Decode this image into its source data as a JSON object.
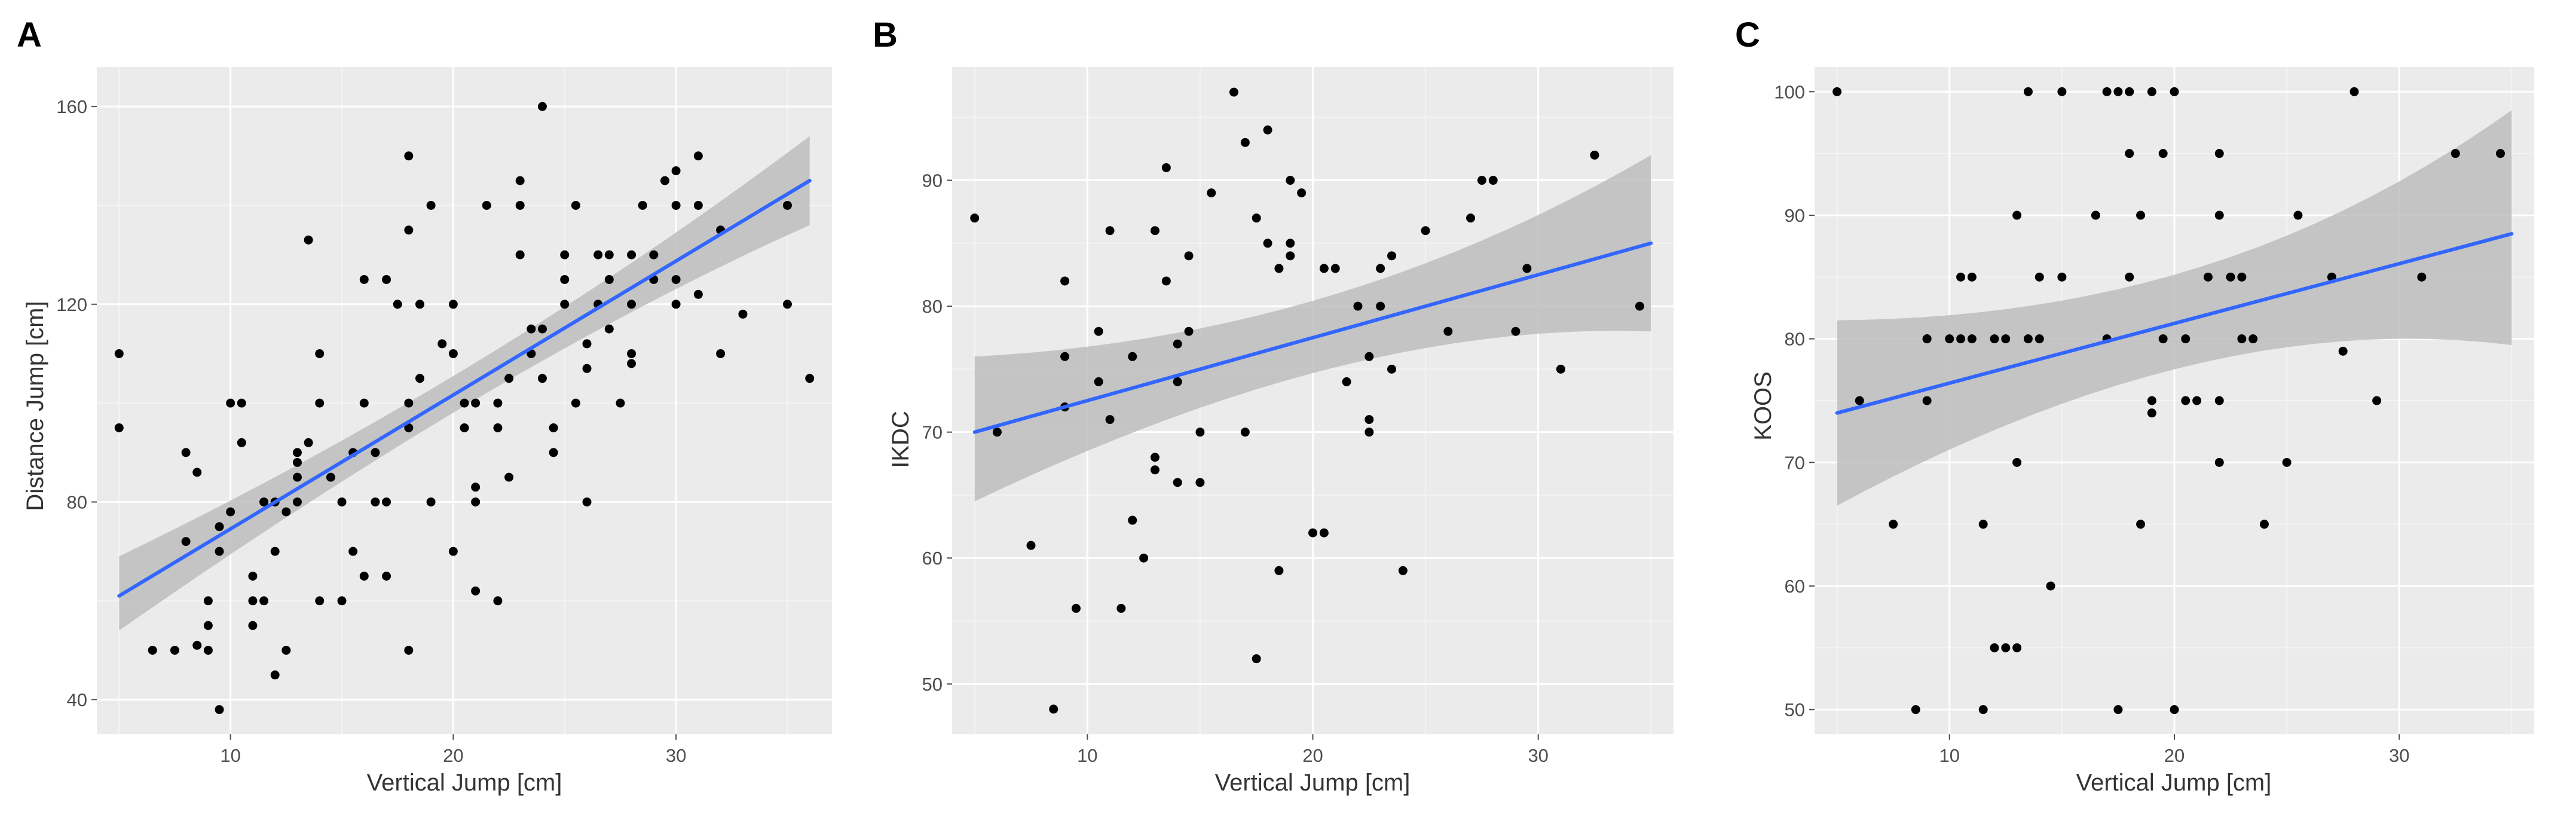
{
  "colors": {
    "panel_bg": "#ebebeb",
    "grid_major": "#ffffff",
    "grid_minor": "#f4f4f4",
    "point": "#000000",
    "fit_line": "#3366ff",
    "ci_band": "#bdbdbd"
  },
  "chart_data": [
    {
      "panel": "A",
      "type": "scatter",
      "title": "",
      "xlabel": "Vertical Jump [cm]",
      "ylabel": "Distance Jump [cm]",
      "xlim": [
        4,
        37
      ],
      "ylim": [
        33,
        168
      ],
      "xticks": [
        10,
        20,
        30
      ],
      "yticks": [
        40,
        80,
        120,
        160
      ],
      "fit": {
        "x": [
          5,
          36
        ],
        "y": [
          61,
          145
        ],
        "lower": [
          54,
          136
        ],
        "upper": [
          69,
          154
        ]
      },
      "points": [
        [
          5,
          110
        ],
        [
          5,
          95
        ],
        [
          6.5,
          50
        ],
        [
          7.5,
          50
        ],
        [
          8,
          72
        ],
        [
          8,
          90
        ],
        [
          8.5,
          51
        ],
        [
          8.5,
          86
        ],
        [
          9,
          50
        ],
        [
          9,
          60
        ],
        [
          9,
          55
        ],
        [
          9.5,
          75
        ],
        [
          9.5,
          70
        ],
        [
          10,
          78
        ],
        [
          10,
          100
        ],
        [
          9.5,
          38
        ],
        [
          10.5,
          100
        ],
        [
          10.5,
          92
        ],
        [
          11,
          55
        ],
        [
          11,
          60
        ],
        [
          11,
          65
        ],
        [
          11.5,
          60
        ],
        [
          11.5,
          80
        ],
        [
          12,
          80
        ],
        [
          12,
          70
        ],
        [
          12,
          45
        ],
        [
          12.5,
          50
        ],
        [
          12.5,
          78
        ],
        [
          13,
          80
        ],
        [
          13,
          85
        ],
        [
          13,
          90
        ],
        [
          13,
          88
        ],
        [
          13.5,
          92
        ],
        [
          13.5,
          133
        ],
        [
          14,
          60
        ],
        [
          14,
          100
        ],
        [
          14,
          110
        ],
        [
          14.5,
          85
        ],
        [
          15,
          80
        ],
        [
          15,
          60
        ],
        [
          15.5,
          90
        ],
        [
          15.5,
          70
        ],
        [
          16,
          100
        ],
        [
          16,
          125
        ],
        [
          16,
          65
        ],
        [
          16.5,
          80
        ],
        [
          16.5,
          90
        ],
        [
          17,
          125
        ],
        [
          17,
          80
        ],
        [
          17,
          65
        ],
        [
          17.5,
          120
        ],
        [
          18,
          95
        ],
        [
          18,
          100
        ],
        [
          18,
          150
        ],
        [
          18,
          135
        ],
        [
          18,
          50
        ],
        [
          18.5,
          105
        ],
        [
          18.5,
          120
        ],
        [
          19,
          80
        ],
        [
          19,
          140
        ],
        [
          19.5,
          112
        ],
        [
          20,
          110
        ],
        [
          20,
          120
        ],
        [
          20,
          70
        ],
        [
          20.5,
          100
        ],
        [
          20.5,
          95
        ],
        [
          21,
          83
        ],
        [
          21,
          80
        ],
        [
          21,
          100
        ],
        [
          21,
          62
        ],
        [
          21.5,
          140
        ],
        [
          22,
          60
        ],
        [
          22,
          95
        ],
        [
          22,
          100
        ],
        [
          22.5,
          85
        ],
        [
          22.5,
          105
        ],
        [
          23,
          145
        ],
        [
          23,
          130
        ],
        [
          23,
          140
        ],
        [
          23.5,
          110
        ],
        [
          23.5,
          115
        ],
        [
          24,
          115
        ],
        [
          24,
          105
        ],
        [
          24,
          160
        ],
        [
          24.5,
          95
        ],
        [
          24.5,
          90
        ],
        [
          25,
          120
        ],
        [
          25,
          125
        ],
        [
          25,
          130
        ],
        [
          25.5,
          100
        ],
        [
          25.5,
          140
        ],
        [
          26,
          80
        ],
        [
          26,
          107
        ],
        [
          26,
          112
        ],
        [
          26.5,
          130
        ],
        [
          26.5,
          120
        ],
        [
          27,
          125
        ],
        [
          27,
          115
        ],
        [
          27,
          130
        ],
        [
          27.5,
          100
        ],
        [
          28,
          110
        ],
        [
          28,
          130
        ],
        [
          28,
          120
        ],
        [
          28,
          108
        ],
        [
          28.5,
          140
        ],
        [
          29,
          125
        ],
        [
          29,
          130
        ],
        [
          29.5,
          145
        ],
        [
          30,
          147
        ],
        [
          30,
          140
        ],
        [
          30,
          120
        ],
        [
          30,
          125
        ],
        [
          31,
          150
        ],
        [
          31,
          140
        ],
        [
          31,
          122
        ],
        [
          32,
          135
        ],
        [
          32,
          110
        ],
        [
          33,
          118
        ],
        [
          35,
          140
        ],
        [
          35,
          120
        ],
        [
          36,
          105
        ]
      ]
    },
    {
      "panel": "B",
      "type": "scatter",
      "title": "",
      "xlabel": "Vertical Jump [cm]",
      "ylabel": "IKDC",
      "xlim": [
        4,
        36
      ],
      "ylim": [
        46,
        99
      ],
      "xticks": [
        10,
        20,
        30
      ],
      "yticks": [
        50,
        60,
        70,
        80,
        90
      ],
      "fit": {
        "x": [
          5,
          35
        ],
        "y": [
          70,
          85
        ],
        "lower": [
          64.5,
          78
        ],
        "upper": [
          76,
          92
        ]
      },
      "points": [
        [
          5,
          87
        ],
        [
          6,
          70
        ],
        [
          7.5,
          61
        ],
        [
          8.5,
          48
        ],
        [
          9,
          72
        ],
        [
          9,
          76
        ],
        [
          9,
          82
        ],
        [
          9.5,
          56
        ],
        [
          10.5,
          74
        ],
        [
          10.5,
          78
        ],
        [
          11,
          86
        ],
        [
          11,
          71
        ],
        [
          11.5,
          56
        ],
        [
          12,
          63
        ],
        [
          12,
          76
        ],
        [
          12.5,
          60
        ],
        [
          13,
          67
        ],
        [
          13,
          68
        ],
        [
          13,
          86
        ],
        [
          13.5,
          91
        ],
        [
          13.5,
          82
        ],
        [
          14,
          74
        ],
        [
          14,
          66
        ],
        [
          14,
          77
        ],
        [
          14.5,
          84
        ],
        [
          14.5,
          78
        ],
        [
          15,
          70
        ],
        [
          15,
          66
        ],
        [
          15.5,
          89
        ],
        [
          16.5,
          97
        ],
        [
          17,
          93
        ],
        [
          17,
          70
        ],
        [
          17.5,
          52
        ],
        [
          17.5,
          87
        ],
        [
          18,
          85
        ],
        [
          18,
          94
        ],
        [
          18.5,
          83
        ],
        [
          18.5,
          59
        ],
        [
          19,
          85
        ],
        [
          19,
          84
        ],
        [
          19,
          90
        ],
        [
          19.5,
          89
        ],
        [
          20,
          62
        ],
        [
          20.5,
          83
        ],
        [
          20.5,
          62
        ],
        [
          21,
          83
        ],
        [
          21.5,
          74
        ],
        [
          22,
          80
        ],
        [
          22.5,
          76
        ],
        [
          22.5,
          71
        ],
        [
          22.5,
          70
        ],
        [
          23,
          80
        ],
        [
          23,
          83
        ],
        [
          23.5,
          75
        ],
        [
          23.5,
          84
        ],
        [
          24,
          59
        ],
        [
          25,
          86
        ],
        [
          26,
          78
        ],
        [
          27,
          87
        ],
        [
          27.5,
          90
        ],
        [
          28,
          90
        ],
        [
          29.5,
          83
        ],
        [
          29,
          78
        ],
        [
          31,
          75
        ],
        [
          32.5,
          92
        ],
        [
          34.5,
          80
        ]
      ]
    },
    {
      "panel": "C",
      "type": "scatter",
      "title": "",
      "xlabel": "Vertical Jump [cm]",
      "ylabel": "KOOS",
      "xlim": [
        4,
        36
      ],
      "ylim": [
        48,
        102
      ],
      "xticks": [
        10,
        20,
        30
      ],
      "yticks": [
        50,
        60,
        70,
        80,
        90,
        100
      ],
      "fit": {
        "x": [
          5,
          35
        ],
        "y": [
          74,
          88.5
        ],
        "lower": [
          66.5,
          79.5
        ],
        "upper": [
          81.5,
          98.5
        ]
      },
      "points": [
        [
          5,
          100
        ],
        [
          6,
          75
        ],
        [
          7.5,
          65
        ],
        [
          8.5,
          50
        ],
        [
          9,
          80
        ],
        [
          9,
          75
        ],
        [
          9,
          80
        ],
        [
          10,
          80
        ],
        [
          10.5,
          85
        ],
        [
          10.5,
          80
        ],
        [
          11,
          85
        ],
        [
          11,
          80
        ],
        [
          11.5,
          50
        ],
        [
          11.5,
          65
        ],
        [
          12,
          55
        ],
        [
          12,
          80
        ],
        [
          12.5,
          55
        ],
        [
          12.5,
          80
        ],
        [
          13,
          90
        ],
        [
          13,
          70
        ],
        [
          13,
          55
        ],
        [
          13.5,
          80
        ],
        [
          13.5,
          100
        ],
        [
          14,
          85
        ],
        [
          14,
          80
        ],
        [
          14.5,
          60
        ],
        [
          15,
          85
        ],
        [
          15,
          100
        ],
        [
          16.5,
          90
        ],
        [
          17,
          80
        ],
        [
          17,
          100
        ],
        [
          17.5,
          100
        ],
        [
          17.5,
          50
        ],
        [
          18,
          95
        ],
        [
          18,
          85
        ],
        [
          18,
          100
        ],
        [
          18.5,
          90
        ],
        [
          18.5,
          65
        ],
        [
          19,
          75
        ],
        [
          19,
          74
        ],
        [
          19,
          100
        ],
        [
          19.5,
          80
        ],
        [
          19.5,
          95
        ],
        [
          20,
          100
        ],
        [
          20,
          50
        ],
        [
          20.5,
          75
        ],
        [
          20.5,
          80
        ],
        [
          21,
          75
        ],
        [
          21.5,
          85
        ],
        [
          22,
          95
        ],
        [
          22,
          90
        ],
        [
          22,
          75
        ],
        [
          22,
          70
        ],
        [
          22.5,
          85
        ],
        [
          23,
          80
        ],
        [
          23,
          85
        ],
        [
          23.5,
          80
        ],
        [
          24,
          65
        ],
        [
          25,
          70
        ],
        [
          25.5,
          90
        ],
        [
          27,
          85
        ],
        [
          27.5,
          79
        ],
        [
          28,
          100
        ],
        [
          29,
          75
        ],
        [
          31,
          85
        ],
        [
          32.5,
          95
        ],
        [
          34.5,
          95
        ]
      ]
    }
  ]
}
